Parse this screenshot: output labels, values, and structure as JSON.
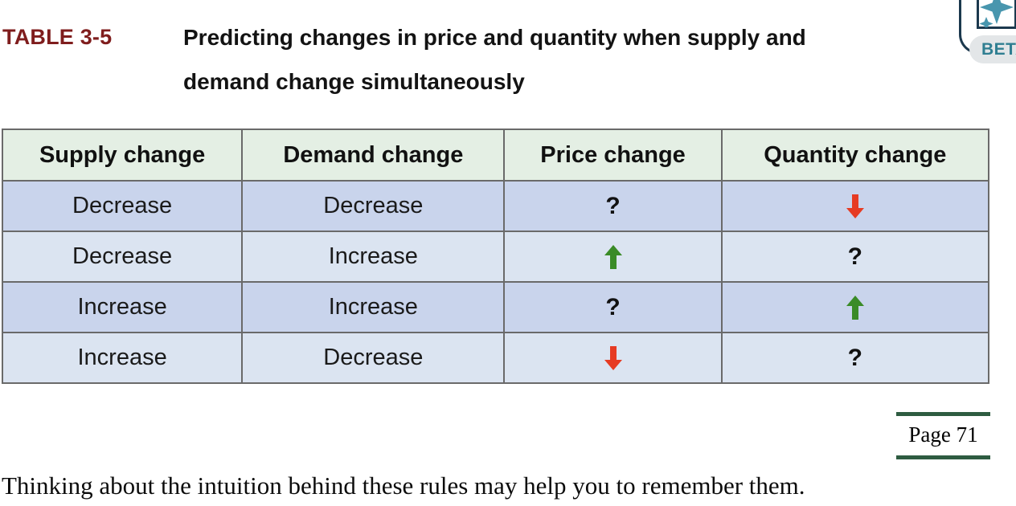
{
  "caption": {
    "label": "TABLE 3-5",
    "title_line1": "Predicting changes in price and quantity when supply and",
    "title_line2": "demand change simultaneously"
  },
  "beta": {
    "badge_label": "BETA",
    "icon": "sparkle-icon"
  },
  "table": {
    "columns": [
      "Supply change",
      "Demand change",
      "Price change",
      "Quantity change"
    ],
    "rows": [
      [
        {
          "kind": "text",
          "value": "Decrease"
        },
        {
          "kind": "text",
          "value": "Decrease"
        },
        {
          "kind": "question",
          "value": "?"
        },
        {
          "kind": "arrow",
          "dir": "down"
        }
      ],
      [
        {
          "kind": "text",
          "value": "Decrease"
        },
        {
          "kind": "text",
          "value": "Increase"
        },
        {
          "kind": "arrow",
          "dir": "up"
        },
        {
          "kind": "question",
          "value": "?"
        }
      ],
      [
        {
          "kind": "text",
          "value": "Increase"
        },
        {
          "kind": "text",
          "value": "Increase"
        },
        {
          "kind": "question",
          "value": "?"
        },
        {
          "kind": "arrow",
          "dir": "up"
        }
      ],
      [
        {
          "kind": "text",
          "value": "Increase"
        },
        {
          "kind": "text",
          "value": "Decrease"
        },
        {
          "kind": "arrow",
          "dir": "down"
        },
        {
          "kind": "question",
          "value": "?"
        }
      ]
    ]
  },
  "page_marker": {
    "label": "Page 71"
  },
  "footer": {
    "text": "Thinking about the intuition behind these rules may help you to remember them."
  },
  "colors": {
    "title_label": "#7f1d1d",
    "header_bg": "#e4efe4",
    "row_odd_bg": "#c9d4ec",
    "row_even_bg": "#dbe4f1",
    "border": "#6a6a6a",
    "arrow_up": "#3a8b27",
    "arrow_down": "#e63b23",
    "page_rule": "#2e5c41",
    "beta_text": "#2f7e91",
    "beta_icon": "#4896ae",
    "beta_frame": "#1c394e"
  }
}
